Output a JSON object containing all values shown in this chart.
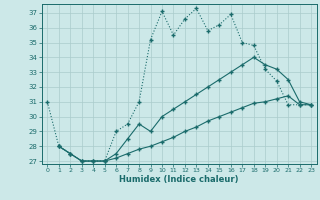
{
  "xlabel": "Humidex (Indice chaleur)",
  "bg_color": "#cce8e8",
  "line_color": "#1a6b6b",
  "grid_color": "#aacccc",
  "xlim": [
    -0.5,
    23.5
  ],
  "ylim": [
    26.8,
    37.6
  ],
  "yticks": [
    27,
    28,
    29,
    30,
    31,
    32,
    33,
    34,
    35,
    36,
    37
  ],
  "xticks": [
    0,
    1,
    2,
    3,
    4,
    5,
    6,
    7,
    8,
    9,
    10,
    11,
    12,
    13,
    14,
    15,
    16,
    17,
    18,
    19,
    20,
    21,
    22,
    23
  ],
  "line1_x": [
    0,
    1,
    2,
    3,
    4,
    5,
    6,
    7,
    8,
    9,
    10,
    11,
    12,
    13,
    14,
    15,
    16,
    17,
    18,
    19,
    20,
    21,
    22,
    23
  ],
  "line1_y": [
    31,
    28,
    27.5,
    27,
    27,
    27,
    29,
    29.5,
    31,
    35.2,
    37.1,
    35.5,
    36.6,
    37.3,
    35.8,
    36.2,
    36.9,
    35,
    34.8,
    33.2,
    32.4,
    30.8,
    30.8,
    30.8
  ],
  "line2_x": [
    1,
    2,
    3,
    4,
    5,
    6,
    7,
    8,
    9,
    10,
    11,
    12,
    13,
    14,
    15,
    16,
    17,
    18,
    19,
    20,
    21,
    22,
    23
  ],
  "line2_y": [
    28,
    27.5,
    27.0,
    27.0,
    27.0,
    27.5,
    28.5,
    29.5,
    29.0,
    30.0,
    30.5,
    31.0,
    31.5,
    32.0,
    32.5,
    33.0,
    33.5,
    34.0,
    33.5,
    33.2,
    32.5,
    31.0,
    30.8
  ],
  "line3_x": [
    1,
    2,
    3,
    4,
    5,
    6,
    7,
    8,
    9,
    10,
    11,
    12,
    13,
    14,
    15,
    16,
    17,
    18,
    19,
    20,
    21,
    22,
    23
  ],
  "line3_y": [
    28,
    27.5,
    27.0,
    27.0,
    27.0,
    27.2,
    27.5,
    27.8,
    28.0,
    28.3,
    28.6,
    29.0,
    29.3,
    29.7,
    30.0,
    30.3,
    30.6,
    30.9,
    31.0,
    31.2,
    31.4,
    30.8,
    30.8
  ]
}
